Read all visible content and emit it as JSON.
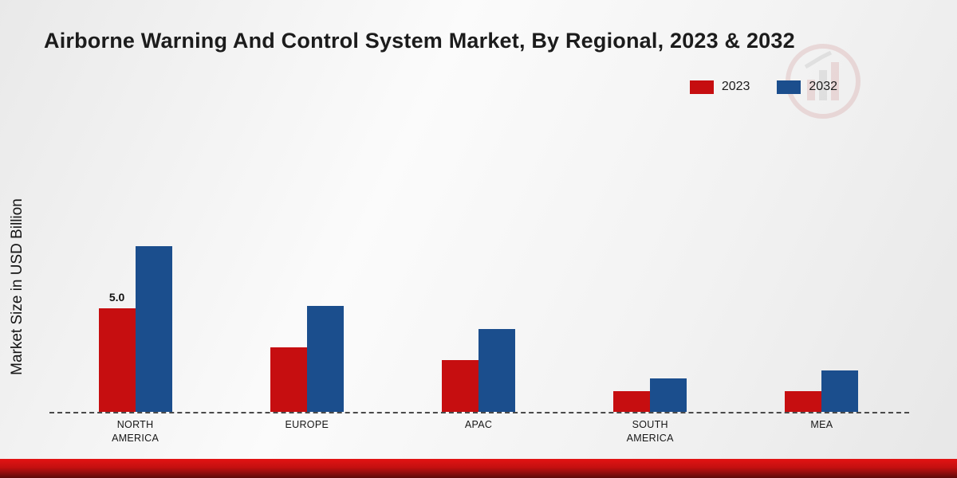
{
  "title": "Airborne Warning And Control System Market, By Regional, 2023 & 2032",
  "y_axis_label": "Market Size in USD Billion",
  "legend": [
    {
      "label": "2023",
      "color": "#c60e10"
    },
    {
      "label": "2032",
      "color": "#1b4e8d"
    }
  ],
  "colors": {
    "series_2023": "#c60e10",
    "series_2032": "#1b4e8d",
    "footer_band_top": "#e31313",
    "footer_band_bottom": "#5c0909"
  },
  "chart_data": {
    "type": "bar",
    "title": "Airborne Warning And Control System Market, By Regional, 2023 & 2032",
    "categories": [
      "NORTH AMERICA",
      "EUROPE",
      "APAC",
      "SOUTH AMERICA",
      "MEA"
    ],
    "category_lines": [
      [
        "NORTH",
        "AMERICA"
      ],
      [
        "EUROPE"
      ],
      [
        "APAC"
      ],
      [
        "SOUTH",
        "AMERICA"
      ],
      [
        "MEA"
      ]
    ],
    "series": [
      {
        "name": "2023",
        "color": "#c60e10",
        "values": [
          5.0,
          3.1,
          2.5,
          1.0,
          1.0
        ]
      },
      {
        "name": "2032",
        "color": "#1b4e8d",
        "values": [
          8.0,
          5.1,
          4.0,
          1.6,
          2.0
        ]
      }
    ],
    "data_labels": [
      {
        "series_index": 0,
        "category_index": 0,
        "text": "5.0"
      }
    ],
    "xlabel": "",
    "ylabel": "Market Size in USD Billion",
    "ylim": [
      0,
      10
    ],
    "grid": false,
    "legend_position": "top-right",
    "baseline_style": "dashed"
  }
}
